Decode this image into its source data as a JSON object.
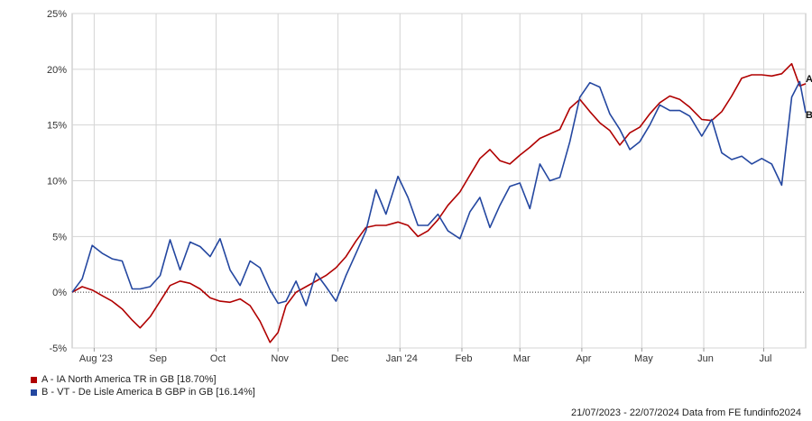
{
  "chart_data": {
    "type": "line",
    "ylim": [
      -5,
      25
    ],
    "yticks": [
      "25%",
      "20%",
      "15%",
      "10%",
      "5%",
      "0%",
      "-5%"
    ],
    "ytick_values": [
      25,
      20,
      15,
      10,
      5,
      0,
      -5
    ],
    "xticks": [
      "Aug '23",
      "Sep",
      "Oct",
      "Nov",
      "Dec",
      "Jan '24",
      "Feb",
      "Mar",
      "Apr",
      "May",
      "Jun",
      "Jul"
    ],
    "xtick_dates": [
      "2023-08-01",
      "2023-09-01",
      "2023-10-01",
      "2023-11-01",
      "2023-12-01",
      "2024-01-01",
      "2024-02-01",
      "2024-03-01",
      "2024-04-01",
      "2024-05-01",
      "2024-06-01",
      "2024-07-01"
    ],
    "x_range": [
      "2023-07-21",
      "2024-07-22"
    ],
    "grid": true,
    "zero_line": true,
    "series": [
      {
        "name": "A - IA North America TR in GB [18.70%]",
        "end_label": "A",
        "color": "#b00000",
        "points": [
          [
            "2023-07-21",
            0.0
          ],
          [
            "2023-07-26",
            0.5
          ],
          [
            "2023-07-31",
            0.2
          ],
          [
            "2023-08-05",
            -0.3
          ],
          [
            "2023-08-10",
            -0.8
          ],
          [
            "2023-08-15",
            -1.5
          ],
          [
            "2023-08-20",
            -2.5
          ],
          [
            "2023-08-24",
            -3.2
          ],
          [
            "2023-08-29",
            -2.2
          ],
          [
            "2023-09-03",
            -0.8
          ],
          [
            "2023-09-08",
            0.6
          ],
          [
            "2023-09-13",
            1.0
          ],
          [
            "2023-09-18",
            0.8
          ],
          [
            "2023-09-23",
            0.3
          ],
          [
            "2023-09-28",
            -0.5
          ],
          [
            "2023-10-03",
            -0.8
          ],
          [
            "2023-10-08",
            -0.9
          ],
          [
            "2023-10-13",
            -0.6
          ],
          [
            "2023-10-18",
            -1.2
          ],
          [
            "2023-10-23",
            -2.6
          ],
          [
            "2023-10-28",
            -4.5
          ],
          [
            "2023-11-01",
            -3.6
          ],
          [
            "2023-11-05",
            -1.2
          ],
          [
            "2023-11-10",
            0.0
          ],
          [
            "2023-11-15",
            0.5
          ],
          [
            "2023-11-20",
            1.0
          ],
          [
            "2023-11-25",
            1.5
          ],
          [
            "2023-11-30",
            2.2
          ],
          [
            "2023-12-05",
            3.2
          ],
          [
            "2023-12-10",
            4.6
          ],
          [
            "2023-12-15",
            5.8
          ],
          [
            "2023-12-20",
            6.0
          ],
          [
            "2023-12-25",
            6.0
          ],
          [
            "2023-12-31",
            6.3
          ],
          [
            "2024-01-05",
            6.0
          ],
          [
            "2024-01-10",
            5.0
          ],
          [
            "2024-01-15",
            5.5
          ],
          [
            "2024-01-20",
            6.5
          ],
          [
            "2024-01-25",
            7.8
          ],
          [
            "2024-01-31",
            9.0
          ],
          [
            "2024-02-05",
            10.5
          ],
          [
            "2024-02-10",
            12.0
          ],
          [
            "2024-02-15",
            12.8
          ],
          [
            "2024-02-20",
            11.8
          ],
          [
            "2024-02-25",
            11.5
          ],
          [
            "2024-03-01",
            12.3
          ],
          [
            "2024-03-06",
            13.0
          ],
          [
            "2024-03-11",
            13.8
          ],
          [
            "2024-03-16",
            14.2
          ],
          [
            "2024-03-21",
            14.6
          ],
          [
            "2024-03-26",
            16.5
          ],
          [
            "2024-03-31",
            17.3
          ],
          [
            "2024-04-05",
            16.2
          ],
          [
            "2024-04-10",
            15.2
          ],
          [
            "2024-04-15",
            14.5
          ],
          [
            "2024-04-20",
            13.2
          ],
          [
            "2024-04-25",
            14.3
          ],
          [
            "2024-04-30",
            14.8
          ],
          [
            "2024-05-05",
            16.0
          ],
          [
            "2024-05-10",
            17.0
          ],
          [
            "2024-05-15",
            17.6
          ],
          [
            "2024-05-20",
            17.3
          ],
          [
            "2024-05-25",
            16.6
          ],
          [
            "2024-05-31",
            15.5
          ],
          [
            "2024-06-05",
            15.4
          ],
          [
            "2024-06-10",
            16.2
          ],
          [
            "2024-06-15",
            17.6
          ],
          [
            "2024-06-20",
            19.2
          ],
          [
            "2024-06-25",
            19.5
          ],
          [
            "2024-06-30",
            19.5
          ],
          [
            "2024-07-05",
            19.4
          ],
          [
            "2024-07-10",
            19.6
          ],
          [
            "2024-07-15",
            20.5
          ],
          [
            "2024-07-19",
            18.5
          ],
          [
            "2024-07-22",
            18.7
          ]
        ]
      },
      {
        "name": "B - VT - De Lisle America B GBP in GB [16.14%]",
        "end_label": "B",
        "color": "#2447a0",
        "points": [
          [
            "2023-07-21",
            0.0
          ],
          [
            "2023-07-26",
            1.2
          ],
          [
            "2023-07-31",
            4.2
          ],
          [
            "2023-08-05",
            3.5
          ],
          [
            "2023-08-10",
            3.0
          ],
          [
            "2023-08-15",
            2.8
          ],
          [
            "2023-08-20",
            0.3
          ],
          [
            "2023-08-24",
            0.3
          ],
          [
            "2023-08-29",
            0.5
          ],
          [
            "2023-09-03",
            1.5
          ],
          [
            "2023-09-08",
            4.7
          ],
          [
            "2023-09-13",
            2.0
          ],
          [
            "2023-09-18",
            4.5
          ],
          [
            "2023-09-23",
            4.1
          ],
          [
            "2023-09-28",
            3.2
          ],
          [
            "2023-10-03",
            4.8
          ],
          [
            "2023-10-08",
            2.0
          ],
          [
            "2023-10-13",
            0.6
          ],
          [
            "2023-10-18",
            2.8
          ],
          [
            "2023-10-23",
            2.2
          ],
          [
            "2023-10-28",
            0.2
          ],
          [
            "2023-11-01",
            -1.0
          ],
          [
            "2023-11-05",
            -0.8
          ],
          [
            "2023-11-10",
            1.0
          ],
          [
            "2023-11-15",
            -1.2
          ],
          [
            "2023-11-20",
            1.7
          ],
          [
            "2023-11-25",
            0.5
          ],
          [
            "2023-11-30",
            -0.8
          ],
          [
            "2023-12-05",
            1.5
          ],
          [
            "2023-12-10",
            3.5
          ],
          [
            "2023-12-15",
            5.5
          ],
          [
            "2023-12-20",
            9.2
          ],
          [
            "2023-12-25",
            7.0
          ],
          [
            "2023-12-31",
            10.4
          ],
          [
            "2024-01-05",
            8.5
          ],
          [
            "2024-01-10",
            6.0
          ],
          [
            "2024-01-15",
            6.0
          ],
          [
            "2024-01-20",
            7.0
          ],
          [
            "2024-01-25",
            5.5
          ],
          [
            "2024-01-31",
            4.8
          ],
          [
            "2024-02-05",
            7.2
          ],
          [
            "2024-02-10",
            8.5
          ],
          [
            "2024-02-15",
            5.8
          ],
          [
            "2024-02-20",
            7.8
          ],
          [
            "2024-02-25",
            9.5
          ],
          [
            "2024-03-01",
            9.8
          ],
          [
            "2024-03-06",
            7.5
          ],
          [
            "2024-03-11",
            11.5
          ],
          [
            "2024-03-16",
            10.0
          ],
          [
            "2024-03-21",
            10.3
          ],
          [
            "2024-03-26",
            13.5
          ],
          [
            "2024-03-31",
            17.5
          ],
          [
            "2024-04-05",
            18.8
          ],
          [
            "2024-04-10",
            18.4
          ],
          [
            "2024-04-15",
            16.0
          ],
          [
            "2024-04-20",
            14.6
          ],
          [
            "2024-04-25",
            12.8
          ],
          [
            "2024-04-30",
            13.5
          ],
          [
            "2024-05-05",
            15.0
          ],
          [
            "2024-05-10",
            16.8
          ],
          [
            "2024-05-15",
            16.3
          ],
          [
            "2024-05-20",
            16.3
          ],
          [
            "2024-05-25",
            15.8
          ],
          [
            "2024-05-31",
            14.0
          ],
          [
            "2024-06-05",
            15.5
          ],
          [
            "2024-06-10",
            12.5
          ],
          [
            "2024-06-15",
            11.9
          ],
          [
            "2024-06-20",
            12.2
          ],
          [
            "2024-06-25",
            11.5
          ],
          [
            "2024-06-30",
            12.0
          ],
          [
            "2024-07-05",
            11.5
          ],
          [
            "2024-07-10",
            9.6
          ],
          [
            "2024-07-15",
            17.5
          ],
          [
            "2024-07-19",
            18.9
          ],
          [
            "2024-07-22",
            16.1
          ]
        ]
      }
    ]
  },
  "legend": {
    "items": [
      {
        "label": "A - IA North America TR in GB [18.70%]",
        "color": "#b00000"
      },
      {
        "label": "B - VT - De Lisle America B GBP in GB [16.14%]",
        "color": "#2447a0"
      }
    ]
  },
  "footer": {
    "text": "21/07/2023 - 22/07/2024 Data from FE fundinfo2024"
  }
}
